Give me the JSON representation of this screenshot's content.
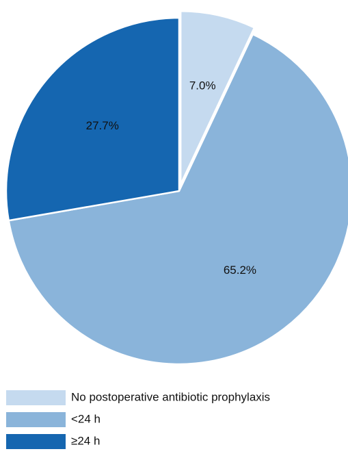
{
  "chart_data": {
    "type": "pie",
    "title": "",
    "slices": [
      {
        "label": "No postoperative antibiotic prophylaxis",
        "value": 7.0,
        "display": "7.0%",
        "color": "#c5daef",
        "exploded": true
      },
      {
        "label": "<24 h",
        "value": 65.2,
        "display": "65.2%",
        "color": "#8ab4da"
      },
      {
        "label": "≥24 h",
        "value": 27.7,
        "display": "27.7%",
        "color": "#1566b0"
      }
    ],
    "legend_position": "bottom-left"
  }
}
